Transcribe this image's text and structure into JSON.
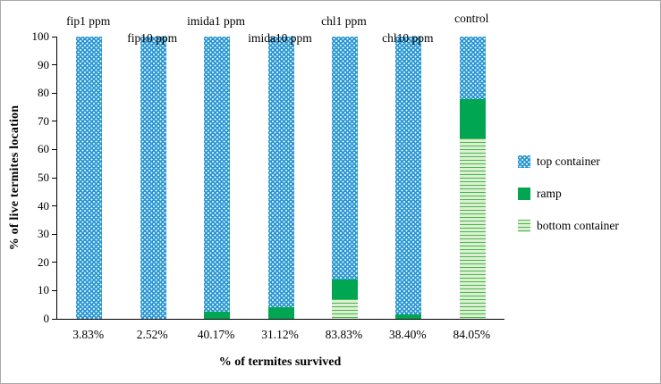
{
  "chart_data": {
    "type": "bar",
    "stacked": true,
    "categories": [
      "fip1 ppm",
      "fip10 ppm",
      "imida1 ppm",
      "imida10 ppm",
      "chl1 ppm",
      "chl10 ppm",
      "control"
    ],
    "x_value_labels": [
      "3.83%",
      "2.52%",
      "40.17%",
      "31.12%",
      "83.83%",
      "38.40%",
      "84.05%"
    ],
    "series": [
      {
        "name": "bottom container",
        "style": "striped-green",
        "values": [
          0,
          0,
          0,
          0,
          7,
          0,
          64
        ]
      },
      {
        "name": "ramp",
        "style": "solid-green",
        "values": [
          0,
          0,
          2.5,
          4,
          7,
          1.5,
          14
        ]
      },
      {
        "name": "top container",
        "style": "dotted-blue",
        "values": [
          100,
          100,
          97.5,
          96,
          86,
          98.5,
          22
        ]
      }
    ],
    "ylabel": "% of live termites location",
    "xlabel": "% of termites survived",
    "ylim": [
      0,
      100
    ],
    "yticks": [
      0,
      10,
      20,
      30,
      40,
      50,
      60,
      70,
      80,
      90,
      100
    ],
    "grid": false,
    "legend": [
      "top container",
      "ramp",
      "bottom container"
    ],
    "legend_position": "right",
    "colors": {
      "top_container": "#2a97d4",
      "ramp": "#00a651",
      "bottom_container_bg": "#ddefd3",
      "bottom_container_line": "#49b74d"
    }
  }
}
